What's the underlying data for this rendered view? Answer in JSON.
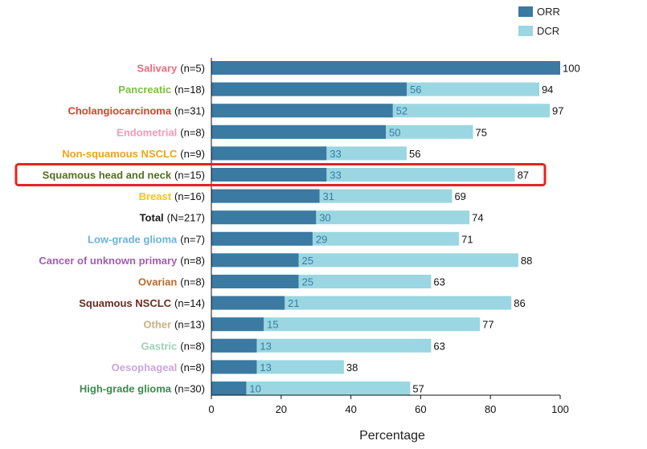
{
  "chart_data": {
    "type": "bar",
    "orientation": "horizontal",
    "stacked": "overlay",
    "xlabel": "Percentage",
    "xlim": [
      0,
      100
    ],
    "xticks": [
      0,
      20,
      40,
      60,
      80,
      100
    ],
    "xtick_labels": [
      "0",
      "20",
      "40",
      "60",
      "80",
      "100"
    ],
    "legend": [
      {
        "name": "ORR",
        "color": "#3a7aa3"
      },
      {
        "name": "DCR",
        "color": "#9ad7e2"
      }
    ],
    "highlighted_category": "Squamous head and neck",
    "highlight_color": "#e8231d",
    "categories": [
      {
        "name": "Salivary",
        "n": "(n=5)",
        "color": "#ef6b7b",
        "orr": 100,
        "orr_label": "",
        "dcr": 100,
        "dcr_label": "100"
      },
      {
        "name": "Pancreatic",
        "n": "(n=18)",
        "color": "#7cbf3f",
        "orr": 56,
        "orr_label": "56",
        "dcr": 94,
        "dcr_label": "94"
      },
      {
        "name": "Cholangiocarcinoma",
        "n": "(n=31)",
        "color": "#e53a2c",
        "orr": 52,
        "orr_label": "52",
        "dcr": 97,
        "dcr_label": "97"
      },
      {
        "name": "Endometrial",
        "n": "(n=8)",
        "color": "#f59bb5",
        "orr": 50,
        "orr_label": "50",
        "dcr": 75,
        "dcr_label": "75"
      },
      {
        "name": "Non-squamous NSCLC",
        "n": "(n=9)",
        "color": "#f4a11c",
        "orr": 33,
        "orr_label": "33",
        "dcr": 56,
        "dcr_label": "56"
      },
      {
        "name": "Squamous head and neck",
        "n": "(n=15)",
        "color": "#55701f",
        "orr": 33,
        "orr_label": "33",
        "dcr": 87,
        "dcr_label": "87"
      },
      {
        "name": "Breast",
        "n": "(n=16)",
        "color": "#f6c21b",
        "orr": 31,
        "orr_label": "31",
        "dcr": 69,
        "dcr_label": "69"
      },
      {
        "name": "Total",
        "n": "(N=217)",
        "color": "#1a1a1a",
        "orr": 30,
        "orr_label": "30",
        "dcr": 74,
        "dcr_label": "74"
      },
      {
        "name": "Low-grade glioma",
        "n": "(n=7)",
        "color": "#6ab4d9",
        "orr": 29,
        "orr_label": "29",
        "dcr": 71,
        "dcr_label": "71"
      },
      {
        "name": "Cancer of unknown primary",
        "n": "(n=8)",
        "color": "#a55bb2",
        "orr": 25,
        "orr_label": "25",
        "dcr": 88,
        "dcr_label": "88"
      },
      {
        "name": "Ovarian",
        "n": "(n=8)",
        "color": "#bb6a2e",
        "orr": 25,
        "orr_label": "25",
        "dcr": 63,
        "dcr_label": "63"
      },
      {
        "name": "Squamous NSCLC",
        "n": "(n=14)",
        "color": "#6b2b22",
        "orr": 21,
        "orr_label": "21",
        "dcr": 86,
        "dcr_label": "86"
      },
      {
        "name": "Other",
        "n": "(n=13)",
        "color": "#c8b27e",
        "orr": 15,
        "orr_label": "15",
        "dcr": 77,
        "dcr_label": "77"
      },
      {
        "name": "Gastric",
        "n": "(n=8)",
        "color": "#9fd0b4",
        "orr": 13,
        "orr_label": "13",
        "dcr": 63,
        "dcr_label": "63"
      },
      {
        "name": "Oesophageal",
        "n": "(n=8)",
        "color": "#c9a6dc",
        "orr": 13,
        "orr_label": "13",
        "dcr": 38,
        "dcr_label": "38"
      },
      {
        "name": "High-grade glioma",
        "n": "(n=30)",
        "color": "#3b8a4e",
        "orr": 10,
        "orr_label": "10",
        "dcr": 57,
        "dcr_label": "57"
      }
    ]
  }
}
